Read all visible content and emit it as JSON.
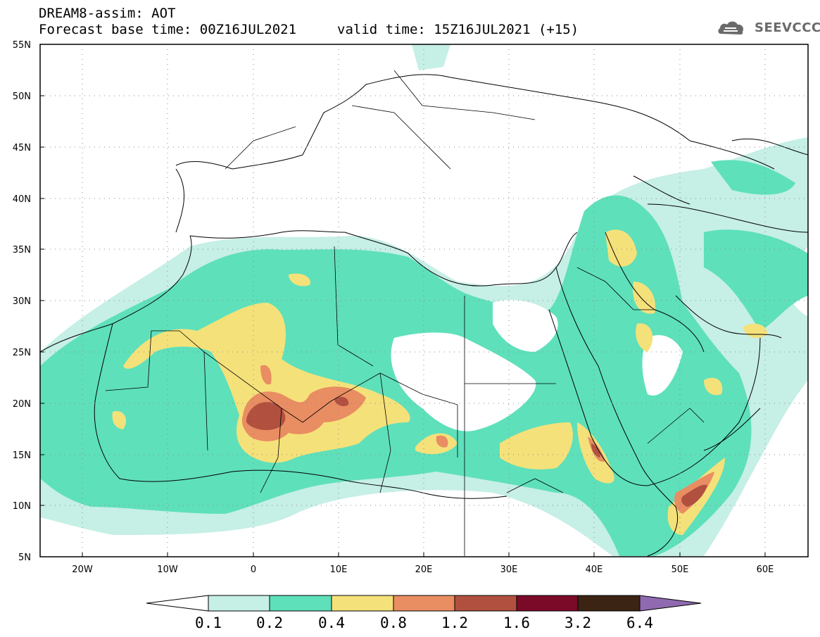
{
  "header": {
    "title": "DREAM8-assim: AOT",
    "subtitle": "Forecast base time: 00Z16JUL2021",
    "valid_time": "valid time: 15Z16JUL2021 (+15)"
  },
  "logo": {
    "text": "SEEVCCC",
    "icon": "cloud-icon"
  },
  "map": {
    "lat_labels": [
      "55N",
      "50N",
      "45N",
      "40N",
      "35N",
      "30N",
      "25N",
      "20N",
      "15N",
      "10N",
      "5N"
    ],
    "lon_labels": [
      "20W",
      "10W",
      "0",
      "10E",
      "20E",
      "30E",
      "40E",
      "50E",
      "60E"
    ],
    "lat_range": [
      5,
      55
    ],
    "lon_range": [
      -25,
      65
    ],
    "grid": "dotted"
  },
  "colorbar": {
    "levels": [
      "0.1",
      "0.2",
      "0.4",
      "0.8",
      "1.2",
      "1.6",
      "3.2",
      "6.4"
    ],
    "colors": [
      "#c6efe6",
      "#5ee0bb",
      "#f5e17a",
      "#e98d62",
      "#b2503f",
      "#7a0a28",
      "#3c2414",
      "#8f6ab0"
    ]
  }
}
